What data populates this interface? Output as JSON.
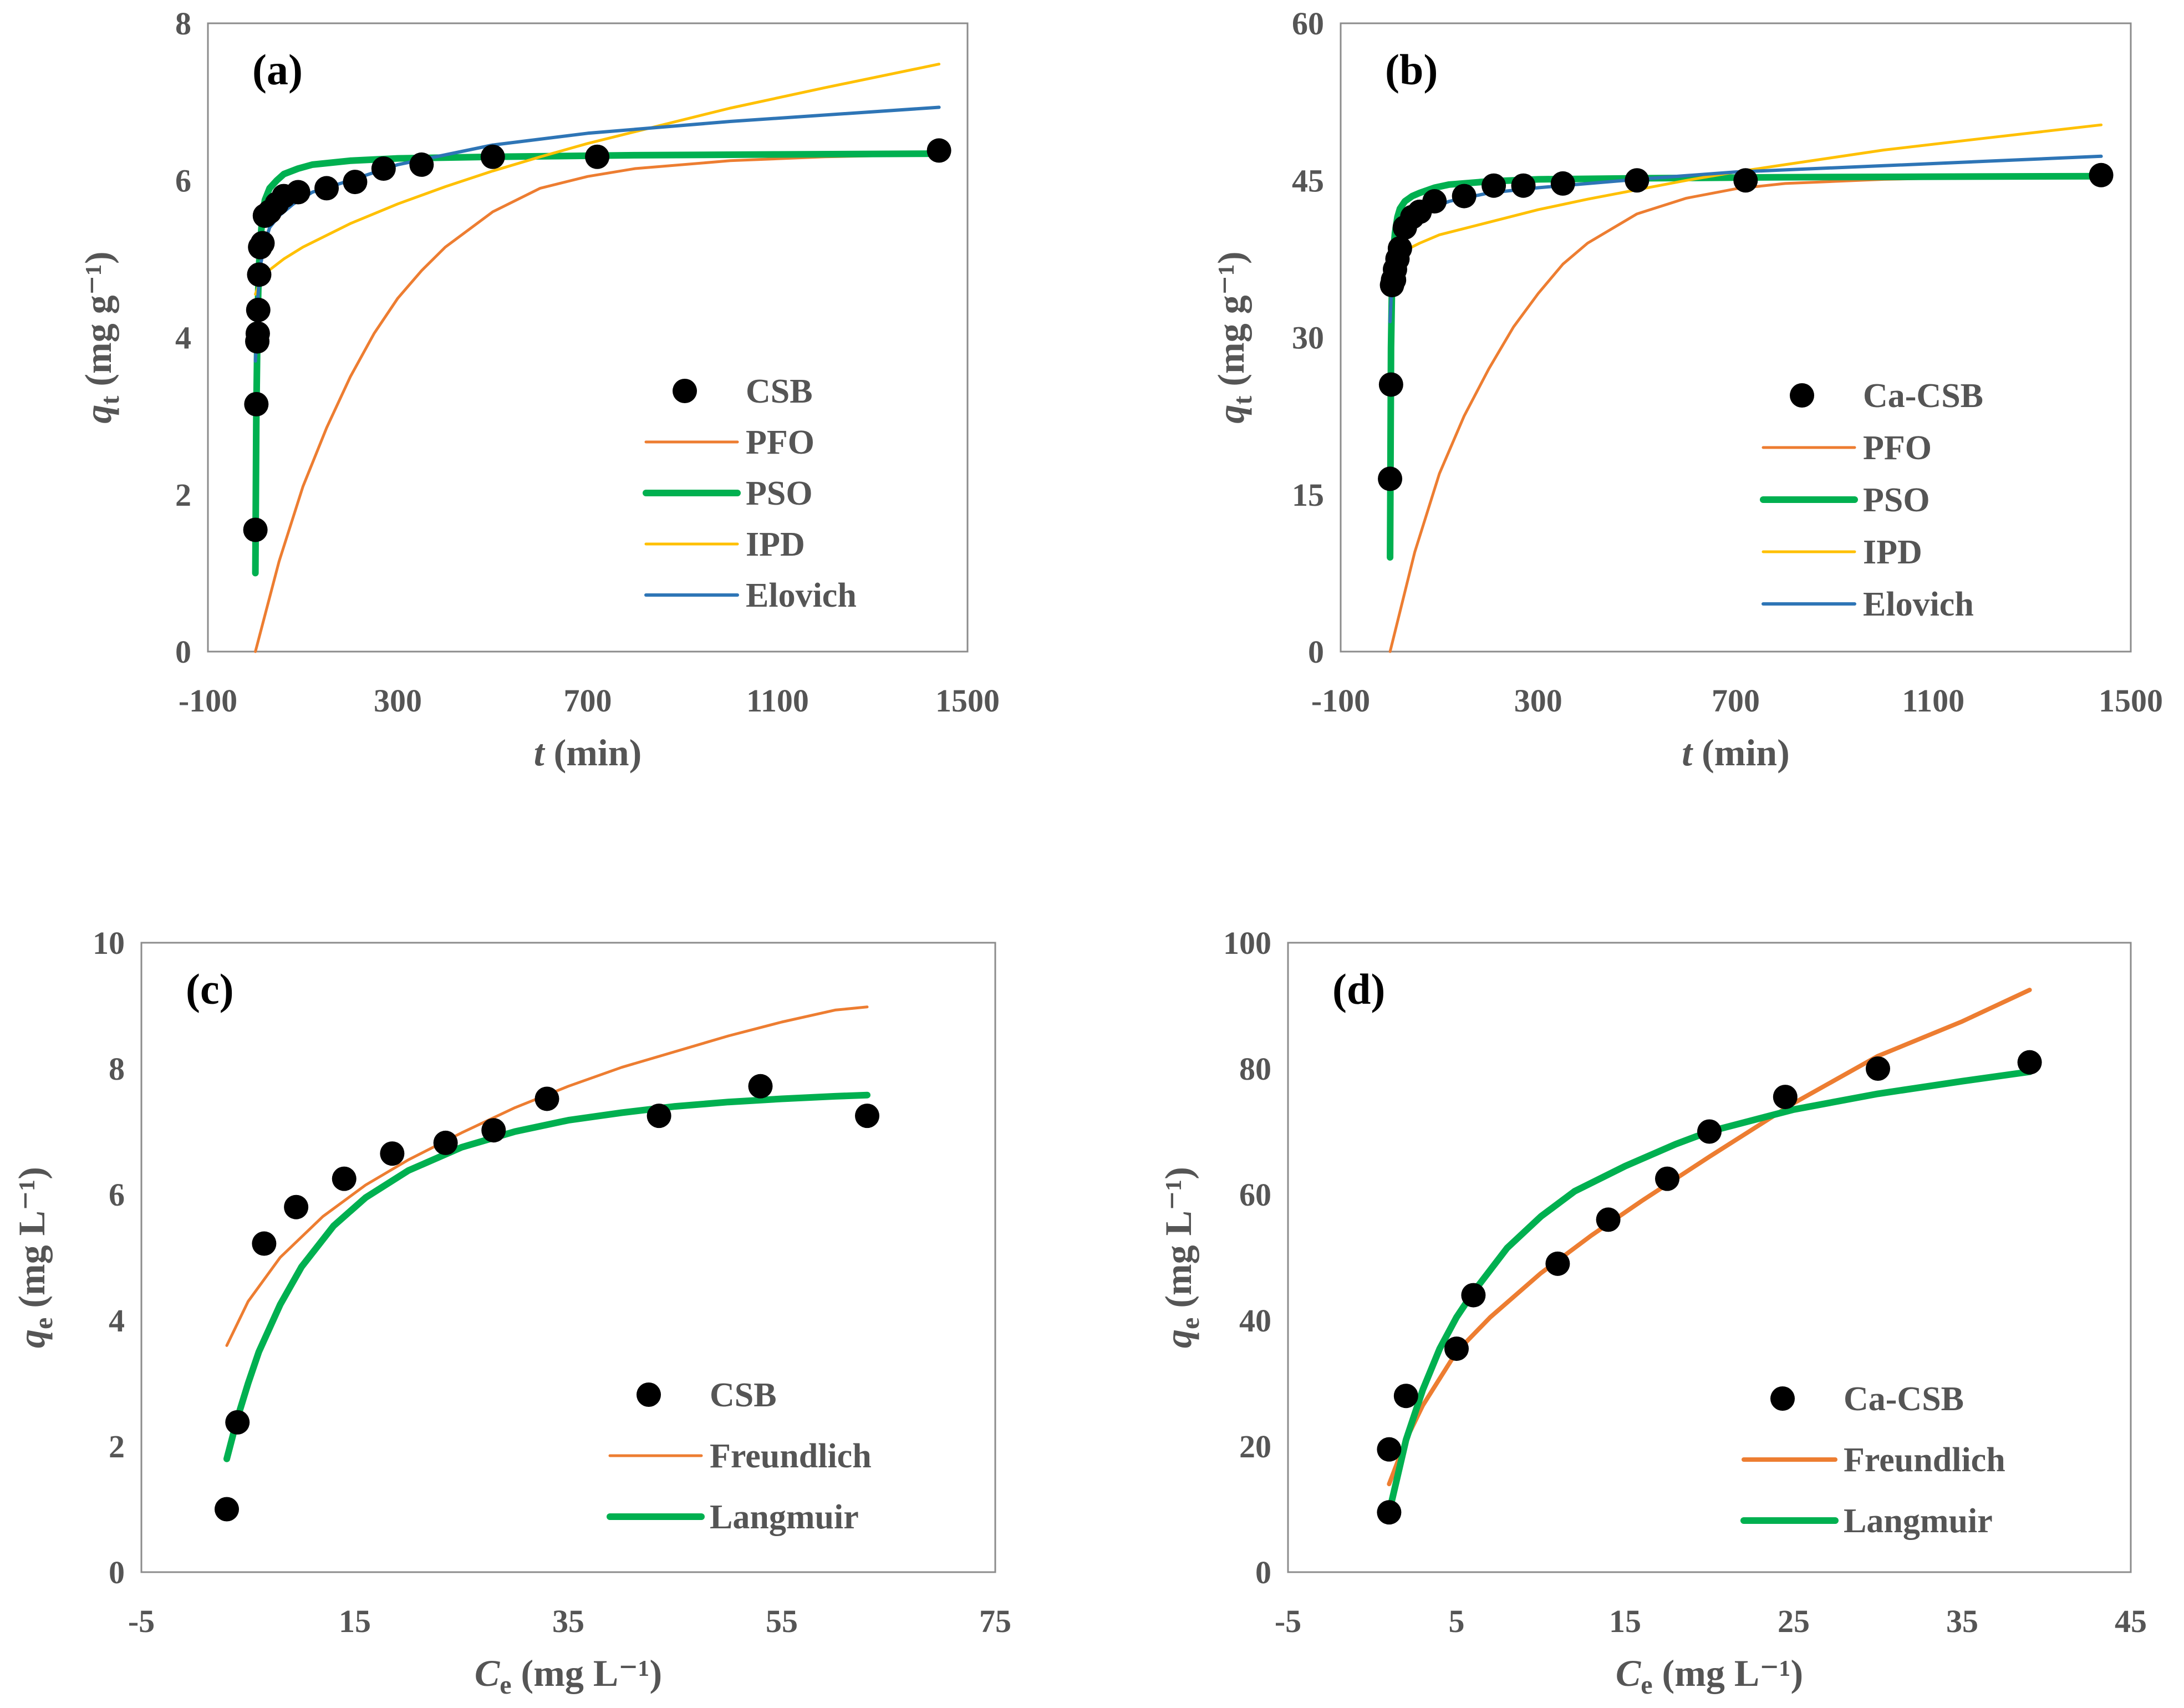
{
  "chart_data": [
    {
      "id": "a",
      "type": "scatter",
      "panel_label": "(a)",
      "xlabel_main": "t",
      "xlabel_unit": " (min)",
      "ylabel_main": "q",
      "ylabel_sub": "t",
      "ylabel_unit": " (mg g⁻¹)",
      "xlim": [
        -100,
        1500
      ],
      "ylim": [
        0,
        8
      ],
      "xticks": [
        -100,
        300,
        700,
        1100,
        1500
      ],
      "yticks": [
        0,
        2,
        4,
        6,
        8
      ],
      "legend_position": "bottom-right",
      "points": {
        "name": "CSB",
        "x": [
          0,
          2,
          4,
          5,
          6,
          8,
          10,
          15,
          20,
          30,
          45,
          60,
          90,
          150,
          210,
          270,
          350,
          500,
          720,
          1440
        ],
        "y": [
          1.55,
          3.15,
          3.95,
          4.05,
          4.35,
          4.8,
          5.15,
          5.2,
          5.55,
          5.6,
          5.7,
          5.8,
          5.85,
          5.9,
          5.98,
          6.15,
          6.2,
          6.3,
          6.3,
          6.38
        ]
      },
      "series": [
        {
          "name": "PFO",
          "color": "#ED7D31",
          "width": 5,
          "x": [
            0,
            50,
            100,
            150,
            200,
            250,
            300,
            350,
            400,
            500,
            600,
            700,
            800,
            1000,
            1200,
            1440
          ],
          "y": [
            0,
            1.15,
            2.1,
            2.85,
            3.5,
            4.05,
            4.5,
            4.85,
            5.15,
            5.6,
            5.9,
            6.05,
            6.15,
            6.25,
            6.3,
            6.33
          ]
        },
        {
          "name": "PSO",
          "color": "#00B050",
          "width": 12,
          "x": [
            0,
            2,
            4,
            6,
            8,
            10,
            15,
            20,
            30,
            45,
            60,
            90,
            120,
            200,
            300,
            500,
            800,
            1100,
            1440
          ],
          "y": [
            1.0,
            3.0,
            4.0,
            4.6,
            4.95,
            5.2,
            5.55,
            5.75,
            5.9,
            6.0,
            6.08,
            6.15,
            6.2,
            6.25,
            6.28,
            6.3,
            6.32,
            6.33,
            6.34
          ]
        },
        {
          "name": "IPD",
          "color": "#FFC000",
          "width": 5,
          "x": [
            0,
            10,
            30,
            60,
            100,
            200,
            300,
            400,
            500,
            600,
            700,
            800,
            1000,
            1200,
            1440
          ],
          "y": [
            4.55,
            4.72,
            4.86,
            5.0,
            5.15,
            5.45,
            5.7,
            5.92,
            6.12,
            6.3,
            6.47,
            6.62,
            6.92,
            7.18,
            7.48
          ]
        },
        {
          "name": "Elovich",
          "color": "#2E75B6",
          "width": 6,
          "x": [
            0,
            2,
            5,
            10,
            20,
            30,
            50,
            80,
            120,
            200,
            300,
            500,
            700,
            1000,
            1440
          ],
          "y": [
            3.7,
            3.9,
            4.5,
            4.9,
            5.2,
            5.4,
            5.55,
            5.7,
            5.85,
            6.0,
            6.2,
            6.45,
            6.6,
            6.75,
            6.93
          ]
        }
      ]
    },
    {
      "id": "b",
      "type": "scatter",
      "panel_label": "(b)",
      "xlabel_main": "t",
      "xlabel_unit": " (min)",
      "ylabel_main": "q",
      "ylabel_sub": "t",
      "ylabel_unit": " (mg g⁻¹)",
      "xlim": [
        -100,
        1500
      ],
      "ylim": [
        0,
        60
      ],
      "xticks": [
        -100,
        300,
        700,
        1100,
        1500
      ],
      "yticks": [
        0,
        15,
        30,
        45,
        60
      ],
      "legend_position": "bottom-right",
      "points": {
        "name": "Ca-CSB",
        "x": [
          0,
          2,
          4,
          6,
          8,
          10,
          15,
          20,
          30,
          45,
          60,
          90,
          150,
          210,
          270,
          350,
          500,
          720,
          1440
        ],
        "y": [
          16.5,
          25.5,
          35.0,
          35.5,
          35.5,
          36.5,
          37.5,
          38.5,
          40.5,
          41.5,
          42.0,
          43.0,
          43.5,
          44.5,
          44.5,
          44.7,
          45.0,
          45.0,
          45.5
        ]
      },
      "series": [
        {
          "name": "PFO",
          "color": "#ED7D31",
          "width": 5,
          "x": [
            0,
            50,
            100,
            150,
            200,
            250,
            300,
            350,
            400,
            500,
            600,
            700,
            800,
            1000,
            1200,
            1440
          ],
          "y": [
            0,
            9.5,
            17.0,
            22.5,
            27.0,
            31.0,
            34.2,
            37.0,
            39.0,
            41.8,
            43.3,
            44.2,
            44.7,
            45.1,
            45.3,
            45.4
          ]
        },
        {
          "name": "PSO",
          "color": "#00B050",
          "width": 12,
          "x": [
            0,
            2,
            4,
            6,
            8,
            10,
            15,
            20,
            30,
            45,
            60,
            90,
            120,
            200,
            300,
            500,
            800,
            1100,
            1440
          ],
          "y": [
            9.0,
            29.0,
            35.0,
            37.5,
            39.0,
            40.0,
            41.5,
            42.3,
            43.0,
            43.5,
            43.8,
            44.3,
            44.6,
            44.9,
            45.1,
            45.2,
            45.3,
            45.35,
            45.4
          ]
        },
        {
          "name": "IPD",
          "color": "#FFC000",
          "width": 5,
          "x": [
            0,
            10,
            30,
            60,
            100,
            200,
            300,
            400,
            500,
            600,
            700,
            800,
            1000,
            1200,
            1440
          ],
          "y": [
            36.9,
            37.6,
            38.3,
            39.0,
            39.8,
            41.0,
            42.2,
            43.2,
            44.1,
            45.0,
            45.8,
            46.5,
            47.9,
            49.0,
            50.3
          ]
        },
        {
          "name": "Elovich",
          "color": "#2E75B6",
          "width": 6,
          "x": [
            0,
            2,
            5,
            10,
            20,
            30,
            50,
            80,
            120,
            200,
            300,
            500,
            700,
            1000,
            1440
          ],
          "y": [
            31.5,
            33.5,
            36.0,
            38.0,
            39.5,
            40.5,
            41.5,
            42.3,
            43.0,
            43.8,
            44.3,
            45.1,
            45.8,
            46.4,
            47.3
          ]
        }
      ]
    },
    {
      "id": "c",
      "type": "scatter",
      "panel_label": "(c)",
      "xlabel_main": "C",
      "xlabel_sub": "e",
      "xlabel_unit": " (mg L⁻¹)",
      "ylabel_main": "q",
      "ylabel_sub": "e",
      "ylabel_unit": " (mg L⁻¹)",
      "xlim": [
        -5,
        75
      ],
      "ylim": [
        0,
        10
      ],
      "xticks": [
        -5,
        15,
        35,
        55,
        75
      ],
      "yticks": [
        0,
        2,
        4,
        6,
        8,
        10
      ],
      "legend_position": "bottom-right",
      "points": {
        "name": "CSB",
        "x": [
          3.0,
          4.0,
          6.5,
          9.5,
          14.0,
          18.5,
          23.5,
          28.0,
          33.0,
          43.5,
          53.0,
          63.0
        ],
        "y": [
          1.0,
          2.38,
          5.22,
          5.8,
          6.25,
          6.65,
          6.82,
          7.02,
          7.52,
          7.25,
          7.72,
          7.25
        ]
      },
      "series": [
        {
          "name": "Freundlich",
          "color": "#ED7D31",
          "width": 5,
          "x": [
            3,
            5,
            8,
            12,
            16,
            20,
            25,
            30,
            35,
            40,
            45,
            50,
            55,
            60,
            63
          ],
          "y": [
            3.6,
            4.3,
            5.0,
            5.65,
            6.15,
            6.55,
            6.98,
            7.38,
            7.72,
            8.02,
            8.27,
            8.52,
            8.74,
            8.93,
            8.98
          ]
        },
        {
          "name": "Langmuir",
          "color": "#00B050",
          "width": 12,
          "x": [
            3,
            4,
            5,
            6,
            8,
            10,
            13,
            16,
            20,
            25,
            30,
            35,
            40,
            45,
            50,
            55,
            60,
            63
          ],
          "y": [
            1.8,
            2.45,
            3.0,
            3.5,
            4.25,
            4.85,
            5.5,
            5.95,
            6.38,
            6.75,
            7.0,
            7.18,
            7.3,
            7.4,
            7.47,
            7.52,
            7.56,
            7.58
          ]
        }
      ]
    },
    {
      "id": "d",
      "type": "scatter",
      "panel_label": "(d)",
      "xlabel_main": "C",
      "xlabel_sub": "e",
      "xlabel_unit": " (mg L⁻¹)",
      "ylabel_main": "q",
      "ylabel_sub": "e",
      "ylabel_unit": " (mg L⁻¹)",
      "xlim": [
        -5,
        45
      ],
      "ylim": [
        0,
        100
      ],
      "xticks": [
        -5,
        5,
        15,
        25,
        35,
        45
      ],
      "yticks": [
        0,
        20,
        40,
        60,
        80,
        100
      ],
      "legend_position": "bottom-right",
      "points": {
        "name": "Ca-CSB",
        "x": [
          1.0,
          1.0,
          2.0,
          5.0,
          6.0,
          11.0,
          14.0,
          17.5,
          20.0,
          24.5,
          30.0,
          39.0
        ],
        "y": [
          9.5,
          19.5,
          28.0,
          35.5,
          44.0,
          49.0,
          56.0,
          62.5,
          70.0,
          75.5,
          80.0,
          81.0
        ]
      },
      "series": [
        {
          "name": "Freundlich",
          "color": "#ED7D31",
          "width": 8,
          "x": [
            1,
            2,
            3,
            5,
            7,
            10,
            13,
            16,
            20,
            25,
            30,
            35,
            39
          ],
          "y": [
            14.0,
            21.0,
            26.5,
            35.0,
            40.5,
            47.5,
            53.5,
            59.0,
            66.0,
            74.5,
            82.0,
            87.5,
            92.5
          ]
        },
        {
          "name": "Langmuir",
          "color": "#00B050",
          "width": 12,
          "x": [
            1,
            2,
            3,
            4,
            5,
            6,
            8,
            10,
            12,
            15,
            18,
            20,
            25,
            30,
            35,
            39
          ],
          "y": [
            9.5,
            21.0,
            29.0,
            35.5,
            40.5,
            44.5,
            51.5,
            56.5,
            60.5,
            64.5,
            68.0,
            70.0,
            73.5,
            76.0,
            78.0,
            79.5
          ]
        }
      ]
    }
  ]
}
